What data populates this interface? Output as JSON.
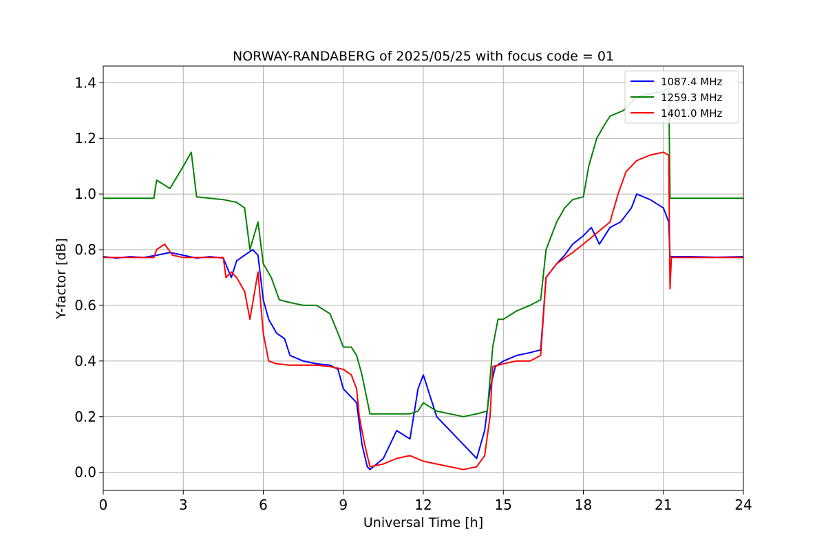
{
  "chart_data": {
    "type": "line",
    "title": "NORWAY-RANDABERG of 2025/05/25 with focus code = 01",
    "xlabel": "Universal Time [h]",
    "ylabel": "Y-factor [dB]",
    "xlim": [
      0,
      24
    ],
    "ylim": [
      -0.065,
      1.46
    ],
    "xticks": [
      0,
      3,
      6,
      9,
      12,
      15,
      18,
      21,
      24
    ],
    "xtick_labels": [
      "0",
      "3",
      "6",
      "9",
      "12",
      "15",
      "18",
      "21",
      "24"
    ],
    "yticks": [
      0.0,
      0.2,
      0.4,
      0.6,
      0.8,
      1.0,
      1.2,
      1.4
    ],
    "ytick_labels": [
      "0.0",
      "0.2",
      "0.4",
      "0.6",
      "0.8",
      "1.0",
      "1.2",
      "1.4"
    ],
    "grid": true,
    "legend_position": "top-right",
    "series": [
      {
        "name": "1087.4 MHz",
        "color": "#0000ff",
        "x": [
          0,
          0.5,
          1.0,
          1.5,
          2.0,
          2.5,
          3.0,
          3.5,
          4.0,
          4.5,
          4.8,
          5.0,
          5.3,
          5.6,
          5.8,
          6.0,
          6.2,
          6.5,
          6.8,
          7.0,
          7.5,
          8.0,
          8.5,
          8.8,
          9.0,
          9.2,
          9.5,
          9.7,
          9.9,
          10.0,
          10.5,
          11.0,
          11.5,
          11.8,
          12.0,
          12.5,
          13.0,
          13.5,
          14.0,
          14.3,
          14.5,
          14.7,
          15.0,
          15.5,
          16.0,
          16.4,
          16.6,
          17.0,
          17.3,
          17.6,
          18.0,
          18.3,
          18.6,
          19.0,
          19.4,
          19.8,
          20.0,
          20.5,
          21.0,
          21.2,
          21.25,
          22.0,
          23.0,
          24.0
        ],
        "y": [
          0.775,
          0.77,
          0.775,
          0.772,
          0.78,
          0.79,
          0.78,
          0.77,
          0.775,
          0.77,
          0.7,
          0.76,
          0.78,
          0.8,
          0.78,
          0.62,
          0.55,
          0.5,
          0.48,
          0.42,
          0.4,
          0.39,
          0.385,
          0.37,
          0.3,
          0.28,
          0.25,
          0.1,
          0.02,
          0.01,
          0.05,
          0.15,
          0.12,
          0.3,
          0.35,
          0.2,
          0.15,
          0.1,
          0.05,
          0.15,
          0.3,
          0.38,
          0.4,
          0.42,
          0.43,
          0.44,
          0.7,
          0.75,
          0.78,
          0.82,
          0.85,
          0.88,
          0.82,
          0.88,
          0.9,
          0.95,
          1.0,
          0.98,
          0.95,
          0.9,
          0.775,
          0.775,
          0.773,
          0.775
        ]
      },
      {
        "name": "1259.3 MHz",
        "color": "#008000",
        "x": [
          0,
          1.0,
          1.9,
          2.0,
          2.5,
          3.0,
          3.3,
          3.5,
          4.0,
          4.5,
          5.0,
          5.3,
          5.5,
          5.8,
          6.0,
          6.3,
          6.6,
          7.0,
          7.5,
          8.0,
          8.5,
          8.8,
          9.0,
          9.3,
          9.5,
          9.7,
          10.0,
          10.5,
          11.0,
          11.5,
          11.8,
          12.0,
          12.5,
          13.0,
          13.5,
          14.0,
          14.4,
          14.6,
          14.8,
          15.0,
          15.5,
          16.0,
          16.4,
          16.6,
          17.0,
          17.3,
          17.6,
          18.0,
          18.2,
          18.5,
          18.8,
          19.0,
          19.5,
          20.0,
          20.5,
          21.0,
          21.2,
          21.25,
          22.0,
          23.0,
          24.0
        ],
        "y": [
          0.985,
          0.985,
          0.985,
          1.05,
          1.02,
          1.1,
          1.15,
          0.99,
          0.985,
          0.98,
          0.97,
          0.95,
          0.8,
          0.9,
          0.75,
          0.7,
          0.62,
          0.61,
          0.6,
          0.6,
          0.57,
          0.5,
          0.45,
          0.45,
          0.42,
          0.35,
          0.21,
          0.21,
          0.21,
          0.21,
          0.22,
          0.25,
          0.22,
          0.21,
          0.2,
          0.21,
          0.22,
          0.45,
          0.55,
          0.55,
          0.58,
          0.6,
          0.62,
          0.8,
          0.9,
          0.95,
          0.98,
          0.99,
          1.1,
          1.2,
          1.25,
          1.28,
          1.3,
          1.35,
          1.36,
          1.37,
          1.38,
          0.985,
          0.985,
          0.985,
          0.985
        ]
      },
      {
        "name": "1401.0 MHz",
        "color": "#ff0000",
        "x": [
          0,
          1.0,
          1.9,
          2.0,
          2.3,
          2.6,
          3.0,
          3.5,
          4.0,
          4.5,
          4.6,
          4.8,
          5.0,
          5.3,
          5.5,
          5.8,
          6.0,
          6.2,
          6.5,
          7.0,
          7.5,
          8.0,
          8.5,
          9.0,
          9.3,
          9.5,
          9.6,
          9.8,
          10.0,
          10.5,
          11.0,
          11.5,
          12.0,
          12.5,
          13.0,
          13.5,
          14.0,
          14.3,
          14.5,
          14.6,
          15.0,
          15.5,
          16.0,
          16.4,
          16.6,
          17.0,
          17.3,
          17.6,
          18.0,
          18.5,
          19.0,
          19.3,
          19.6,
          20.0,
          20.5,
          21.0,
          21.2,
          21.25,
          21.3,
          22.0,
          23.0,
          24.0
        ],
        "y": [
          0.772,
          0.772,
          0.772,
          0.8,
          0.82,
          0.78,
          0.772,
          0.772,
          0.772,
          0.772,
          0.7,
          0.72,
          0.7,
          0.65,
          0.55,
          0.72,
          0.5,
          0.4,
          0.39,
          0.385,
          0.385,
          0.385,
          0.38,
          0.37,
          0.35,
          0.3,
          0.2,
          0.1,
          0.02,
          0.03,
          0.05,
          0.06,
          0.04,
          0.03,
          0.02,
          0.01,
          0.02,
          0.06,
          0.2,
          0.38,
          0.39,
          0.4,
          0.4,
          0.42,
          0.7,
          0.75,
          0.77,
          0.79,
          0.82,
          0.86,
          0.9,
          1.0,
          1.08,
          1.12,
          1.14,
          1.15,
          1.14,
          0.66,
          0.772,
          0.772,
          0.772,
          0.772
        ]
      }
    ]
  }
}
